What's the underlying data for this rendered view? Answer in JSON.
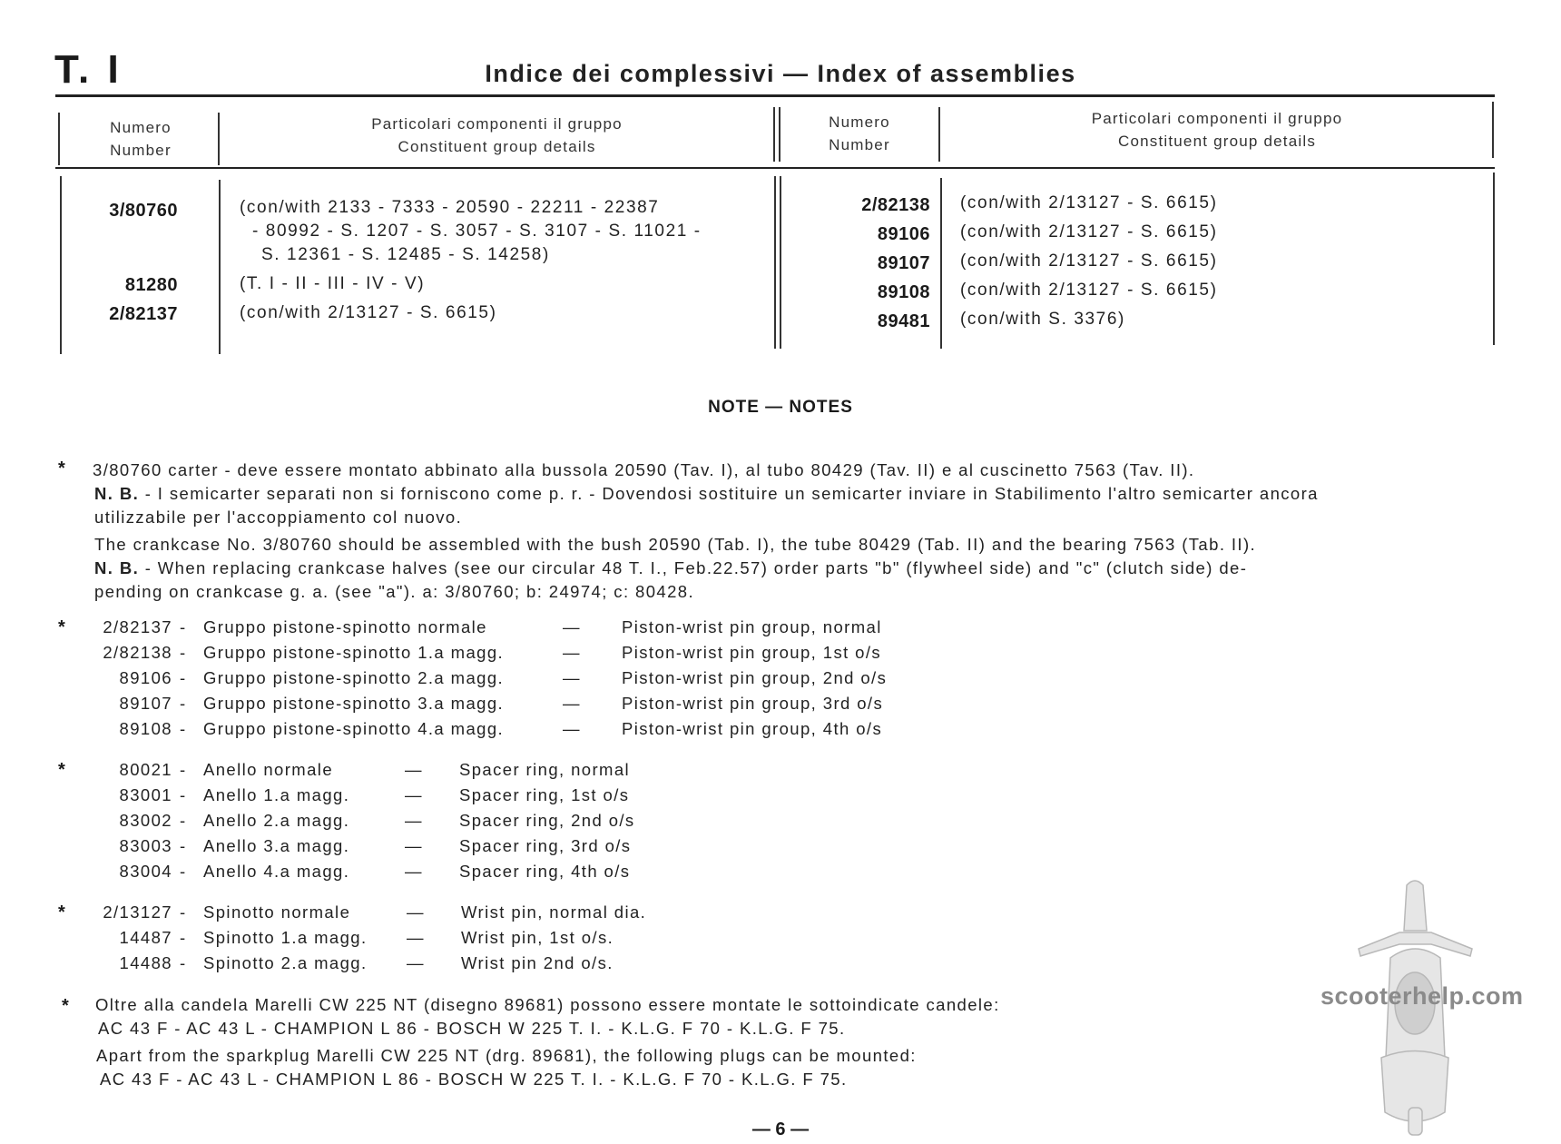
{
  "header": {
    "table_number": "T. I",
    "title": "Indice dei complessivi — Index of assemblies"
  },
  "table": {
    "columns": [
      {
        "it": "Numero",
        "en": "Number"
      },
      {
        "it": "Particolari componenti il gruppo",
        "en": "Constituent group details"
      },
      {
        "it": "Numero",
        "en": "Number"
      },
      {
        "it": "Particolari componenti il gruppo",
        "en": "Constituent group details"
      }
    ],
    "left_rows": [
      {
        "number": "3/80760",
        "details": [
          "(con/with 2133 - 7333 - 20590 - 22211 - 22387",
          "- 80992 - S. 1207 - S. 3057 - S. 3107 - S. 11021 -",
          "S. 12361 - S. 12485 - S. 14258)"
        ]
      },
      {
        "number": "81280",
        "details": [
          "(T. I - II - III - IV - V)"
        ]
      },
      {
        "number": "2/82137",
        "details": [
          "(con/with 2/13127 - S. 6615)"
        ]
      }
    ],
    "right_rows": [
      {
        "number": "2/82138",
        "details": "(con/with 2/13127 - S. 6615)"
      },
      {
        "number": "89106",
        "details": "(con/with 2/13127 - S. 6615)"
      },
      {
        "number": "89107",
        "details": "(con/with 2/13127 - S. 6615)"
      },
      {
        "number": "89108",
        "details": "(con/with 2/13127 - S. 6615)"
      },
      {
        "number": "89481",
        "details": "(con/with S. 3376)"
      }
    ]
  },
  "notes": {
    "title": "NOTE — NOTES",
    "star": "*",
    "crankcase": {
      "it_line1": "3/80760 carter - deve essere montato abbinato alla bussola 20590 (Tav. I), al tubo 80429 (Tav. II) e al cuscinetto 7563 (Tav. II).",
      "nb_label": "N. B.",
      "it_nb": "- I semicarter separati non si forniscono come p. r. - Dovendosi sostituire un semicarter inviare in Stabilimento l'altro semicarter ancora",
      "it_nb2": "utilizzabile per l'accoppiamento col nuovo.",
      "en_line1": "The crankcase No. 3/80760 should be assembled with the bush 20590 (Tab. I), the tube 80429 (Tab. II) and the bearing 7563 (Tab. II).",
      "en_nb": "- When replacing crankcase halves (see our circular 48 T. I., Feb.22.57) order parts \"b\" (flywheel side) and \"c\" (clutch side) de-",
      "en_nb2": "pending on crankcase g. a. (see \"a\"). a: 3/80760; b: 24974; c: 80428."
    },
    "groups": [
      {
        "items": [
          {
            "code": "2/82137",
            "it": "Gruppo pistone-spinotto normale",
            "en": "Piston-wrist pin group, normal"
          },
          {
            "code": "2/82138",
            "it": "Gruppo pistone-spinotto 1.a magg.",
            "en": "Piston-wrist pin group, 1st o/s"
          },
          {
            "code": "89106",
            "it": "Gruppo pistone-spinotto 2.a magg.",
            "en": "Piston-wrist pin group, 2nd o/s"
          },
          {
            "code": "89107",
            "it": "Gruppo pistone-spinotto 3.a magg.",
            "en": "Piston-wrist pin group, 3rd o/s"
          },
          {
            "code": "89108",
            "it": "Gruppo pistone-spinotto 4.a magg.",
            "en": "Piston-wrist pin group, 4th o/s"
          }
        ]
      },
      {
        "items": [
          {
            "code": "80021",
            "it": "Anello normale",
            "en": "Spacer ring, normal"
          },
          {
            "code": "83001",
            "it": "Anello 1.a magg.",
            "en": "Spacer ring, 1st o/s"
          },
          {
            "code": "83002",
            "it": "Anello 2.a magg.",
            "en": "Spacer ring, 2nd o/s"
          },
          {
            "code": "83003",
            "it": "Anello 3.a magg.",
            "en": "Spacer ring, 3rd o/s"
          },
          {
            "code": "83004",
            "it": "Anello 4.a magg.",
            "en": "Spacer ring, 4th o/s"
          }
        ]
      },
      {
        "items": [
          {
            "code": "2/13127",
            "it": "Spinotto normale",
            "en": "Wrist pin, normal dia."
          },
          {
            "code": "14487",
            "it": "Spinotto 1.a magg.",
            "en": "Wrist pin, 1st o/s."
          },
          {
            "code": "14488",
            "it": "Spinotto 2.a magg.",
            "en": "Wrist pin 2nd o/s."
          }
        ]
      }
    ],
    "plugs": {
      "it1": "Oltre alla candela Marelli CW 225 NT (disegno 89681) possono essere montate le sottoindicate candele:",
      "it2": "AC 43 F - AC 43 L - CHAMPION L 86 - BOSCH W 225 T. I. - K.L.G. F 70 - K.L.G. F 75.",
      "en1": "Apart from the sparkplug Marelli CW 225 NT (drg. 89681), the following plugs can be mounted:",
      "en2": "AC 43 F - AC 43 L - CHAMPION L 86 - BOSCH W 225 T. I. - K.L.G. F 70 - K.L.G. F 75."
    }
  },
  "watermark": "scooterhelp.com",
  "page_number": "— 6 —",
  "dash": "—"
}
